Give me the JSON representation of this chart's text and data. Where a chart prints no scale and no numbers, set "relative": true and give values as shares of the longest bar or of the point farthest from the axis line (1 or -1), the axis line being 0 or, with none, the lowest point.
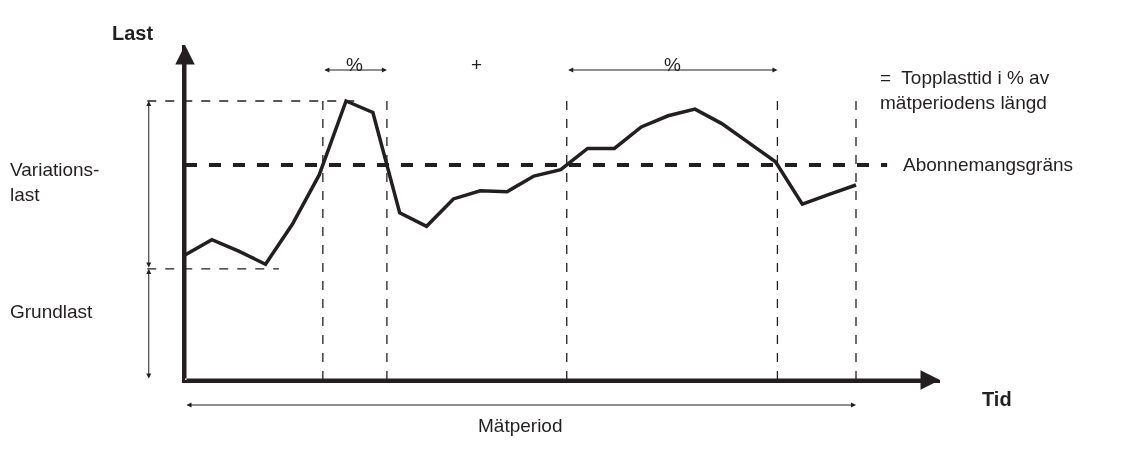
{
  "chart_data": {
    "type": "line",
    "relative": true,
    "xlabel": "Tid",
    "ylabel": "Last",
    "categories": [
      null,
      null,
      null,
      null,
      null,
      null,
      null,
      null,
      null,
      null,
      null,
      null,
      null,
      null,
      null,
      null,
      null,
      null,
      null,
      null,
      null,
      null,
      null,
      null,
      null,
      null
    ],
    "series": [
      {
        "color": "#231f20",
        "values": [
          0.448,
          0.503,
          0.462,
          0.415,
          0.558,
          0.735,
          1.0,
          0.959,
          0.599,
          0.551,
          0.649,
          0.678,
          0.675,
          0.731,
          0.754,
          0.83,
          0.83,
          0.907,
          0.947,
          0.971,
          0.919,
          0.851,
          0.782,
          0.63,
          0.665,
          0.699
        ]
      }
    ],
    "ref_lines": [
      {
        "axis": "y",
        "value": 0.771,
        "label": "Abonnemangsgräns",
        "line_style": "dashed",
        "color": "#231f20"
      },
      {
        "axis": "y",
        "value": 1.0,
        "line_style": "dashed",
        "color": "#231f20"
      },
      {
        "axis": "y",
        "value": 0.398,
        "line_style": "dashed",
        "color": "#231f20"
      }
    ],
    "annotations": [
      "%",
      "+",
      "%",
      "=  Topplasttid i % av\nmätperiodens längd",
      "Variations-\nlast",
      "Grundlast",
      "Mätperiod"
    ],
    "line_style": "solid",
    "marker": "none"
  }
}
